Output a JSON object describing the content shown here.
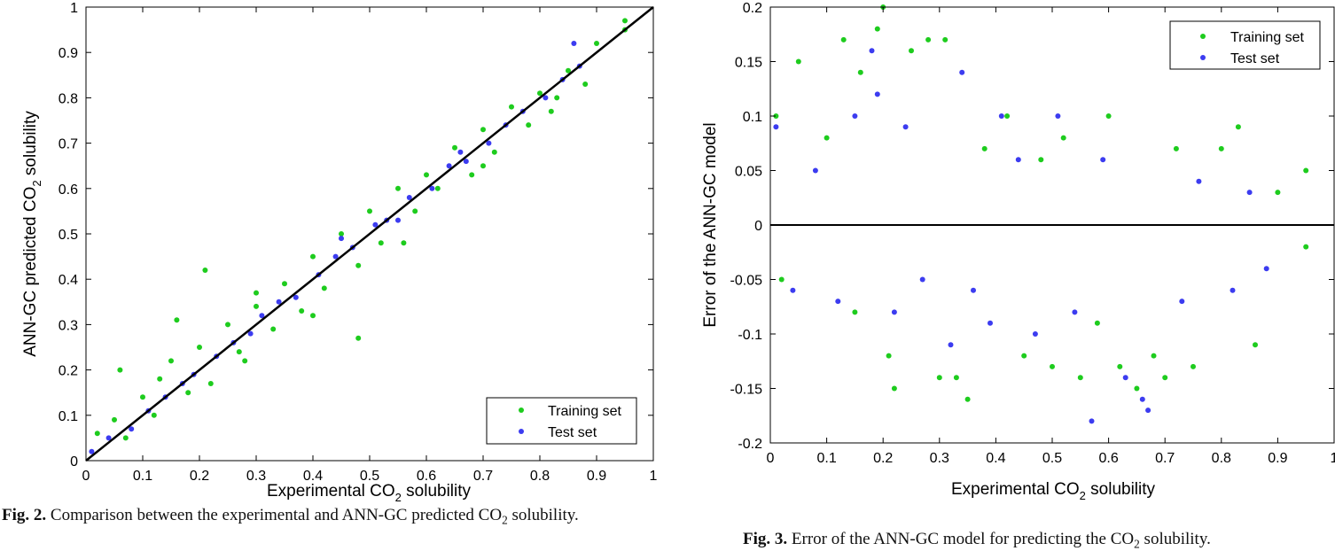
{
  "figures": [
    {
      "caption": {
        "label": "Fig. 2.",
        "text_before": "Comparison between the experimental and ANN-GC predicted CO",
        "text_sub": "2",
        "text_after": " solubility."
      }
    },
    {
      "caption": {
        "label": "Fig. 3.",
        "text_before": "Error of the ANN-GC model for predicting the CO",
        "text_sub": "2",
        "text_after": " solubility."
      }
    }
  ],
  "chart_data": [
    {
      "type": "scatter",
      "title": "",
      "xlabel": "Experimental CO2 solubility",
      "xlabel_main": "Experimental CO",
      "xlabel_sub": "2",
      "xlabel_tail": " solubility",
      "ylabel": "ANN-GC predicted CO2 solubility",
      "ylabel_main": "ANN-GC predicted CO",
      "ylabel_sub": "2",
      "ylabel_tail": " solubility",
      "xlim": [
        0,
        1
      ],
      "ylim": [
        0,
        1
      ],
      "xticks": [
        "0",
        "0.1",
        "0.2",
        "0.3",
        "0.4",
        "0.5",
        "0.6",
        "0.7",
        "0.8",
        "0.9",
        "1"
      ],
      "yticks": [
        "0",
        "0.1",
        "0.2",
        "0.3",
        "0.4",
        "0.5",
        "0.6",
        "0.7",
        "0.8",
        "0.9",
        "1"
      ],
      "grid": false,
      "legend_position": "bottom-right",
      "reference_line": {
        "x": [
          0,
          1
        ],
        "y": [
          0,
          1
        ],
        "color": "#000000"
      },
      "series": [
        {
          "name": "Training set",
          "color": "#1ecc1e",
          "x": [
            0.02,
            0.05,
            0.07,
            0.1,
            0.12,
            0.15,
            0.18,
            0.2,
            0.22,
            0.25,
            0.28,
            0.3,
            0.33,
            0.35,
            0.38,
            0.4,
            0.42,
            0.45,
            0.48,
            0.5,
            0.52,
            0.55,
            0.58,
            0.6,
            0.62,
            0.65,
            0.68,
            0.7,
            0.72,
            0.75,
            0.78,
            0.8,
            0.82,
            0.85,
            0.88,
            0.9,
            0.95,
            0.06,
            0.16,
            0.21,
            0.48,
            0.95,
            0.3,
            0.4,
            0.56,
            0.7,
            0.83,
            0.13,
            0.27
          ],
          "y": [
            0.06,
            0.09,
            0.05,
            0.14,
            0.1,
            0.22,
            0.15,
            0.25,
            0.17,
            0.3,
            0.22,
            0.34,
            0.29,
            0.39,
            0.33,
            0.45,
            0.38,
            0.5,
            0.43,
            0.55,
            0.48,
            0.6,
            0.55,
            0.63,
            0.6,
            0.69,
            0.63,
            0.73,
            0.68,
            0.78,
            0.74,
            0.81,
            0.77,
            0.86,
            0.83,
            0.92,
            0.97,
            0.2,
            0.31,
            0.42,
            0.27,
            0.95,
            0.37,
            0.32,
            0.48,
            0.65,
            0.8,
            0.18,
            0.24
          ]
        },
        {
          "name": "Test set",
          "color": "#3c3cf0",
          "x": [
            0.01,
            0.04,
            0.08,
            0.11,
            0.14,
            0.17,
            0.19,
            0.23,
            0.26,
            0.29,
            0.31,
            0.34,
            0.37,
            0.41,
            0.44,
            0.47,
            0.51,
            0.53,
            0.57,
            0.61,
            0.64,
            0.67,
            0.71,
            0.74,
            0.77,
            0.81,
            0.84,
            0.87,
            0.45,
            0.55,
            0.66,
            0.86
          ],
          "y": [
            0.02,
            0.05,
            0.07,
            0.11,
            0.14,
            0.17,
            0.19,
            0.23,
            0.26,
            0.28,
            0.32,
            0.35,
            0.36,
            0.41,
            0.45,
            0.47,
            0.52,
            0.53,
            0.58,
            0.6,
            0.65,
            0.66,
            0.7,
            0.74,
            0.77,
            0.8,
            0.84,
            0.87,
            0.49,
            0.53,
            0.68,
            0.92
          ]
        }
      ]
    },
    {
      "type": "scatter",
      "title": "",
      "xlabel": "Experimental CO2 solubility",
      "xlabel_main": "Experimental CO",
      "xlabel_sub": "2",
      "xlabel_tail": " solubility",
      "ylabel": "Error of the ANN-GC model",
      "xlim": [
        0,
        1
      ],
      "ylim": [
        -0.2,
        0.2
      ],
      "xticks": [
        "0",
        "0.1",
        "0.2",
        "0.3",
        "0.4",
        "0.5",
        "0.6",
        "0.7",
        "0.8",
        "0.9",
        "1"
      ],
      "yticks": [
        "-0.2",
        "-0.15",
        "-0.1",
        "-0.05",
        "0",
        "0.05",
        "0.1",
        "0.15",
        "0.2"
      ],
      "grid": false,
      "legend_position": "top-right",
      "reference_line": {
        "x": [
          0,
          1
        ],
        "y": [
          0,
          0
        ],
        "color": "#000000"
      },
      "series": [
        {
          "name": "Training set",
          "color": "#1ecc1e",
          "x": [
            0.01,
            0.05,
            0.1,
            0.13,
            0.16,
            0.19,
            0.2,
            0.22,
            0.25,
            0.28,
            0.31,
            0.33,
            0.35,
            0.38,
            0.42,
            0.45,
            0.48,
            0.5,
            0.55,
            0.58,
            0.6,
            0.62,
            0.65,
            0.68,
            0.72,
            0.75,
            0.8,
            0.83,
            0.86,
            0.9,
            0.95,
            0.95,
            0.02,
            0.15,
            0.21,
            0.3,
            0.52,
            0.7
          ],
          "y": [
            0.1,
            0.15,
            0.08,
            0.17,
            0.14,
            0.18,
            0.2,
            -0.15,
            0.16,
            0.17,
            0.17,
            -0.14,
            -0.16,
            0.07,
            0.1,
            -0.12,
            0.06,
            -0.13,
            -0.14,
            -0.09,
            0.1,
            -0.13,
            -0.15,
            -0.12,
            0.07,
            -0.13,
            0.07,
            0.09,
            -0.11,
            0.03,
            0.05,
            -0.02,
            -0.05,
            -0.08,
            -0.12,
            -0.14,
            0.08,
            -0.14
          ]
        },
        {
          "name": "Test set",
          "color": "#3c3cf0",
          "x": [
            0.01,
            0.04,
            0.08,
            0.12,
            0.15,
            0.18,
            0.19,
            0.22,
            0.24,
            0.27,
            0.32,
            0.34,
            0.36,
            0.39,
            0.41,
            0.44,
            0.47,
            0.51,
            0.54,
            0.57,
            0.59,
            0.63,
            0.66,
            0.67,
            0.73,
            0.76,
            0.82,
            0.85,
            0.88
          ],
          "y": [
            0.09,
            -0.06,
            0.05,
            -0.07,
            0.1,
            0.16,
            0.12,
            -0.08,
            0.09,
            -0.05,
            -0.11,
            0.14,
            -0.06,
            -0.09,
            0.1,
            0.06,
            -0.1,
            0.1,
            -0.08,
            -0.18,
            0.06,
            -0.14,
            -0.16,
            -0.17,
            -0.07,
            0.04,
            -0.06,
            0.03,
            -0.04
          ]
        }
      ]
    }
  ]
}
